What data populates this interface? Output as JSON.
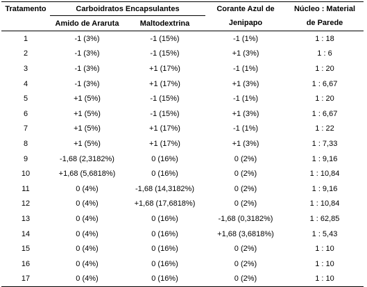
{
  "headers": {
    "tratamento": "Tratamento",
    "carboidratos": "Carboidratos Encapsulantes",
    "amido": "Amido de Araruta",
    "maltodextrina": "Maltodextrina",
    "corante_l1": "Corante Azul de",
    "corante_l2": "Jenipapo",
    "nucleo_l1": "Núcleo : Material",
    "nucleo_l2": "de Parede"
  },
  "rows": [
    [
      "1",
      "-1 (3%)",
      "-1 (15%)",
      "-1 (1%)",
      "1 : 18"
    ],
    [
      "2",
      "-1 (3%)",
      "-1 (15%)",
      "+1 (3%)",
      "1 : 6"
    ],
    [
      "3",
      "-1 (3%)",
      "+1 (17%)",
      "-1 (1%)",
      "1 : 20"
    ],
    [
      "4",
      "-1 (3%)",
      "+1 (17%)",
      "+1 (3%)",
      "1 : 6,67"
    ],
    [
      "5",
      "+1 (5%)",
      "-1 (15%)",
      "-1 (1%)",
      "1 : 20"
    ],
    [
      "6",
      "+1 (5%)",
      "-1 (15%)",
      "+1 (3%)",
      "1 : 6,67"
    ],
    [
      "7",
      "+1 (5%)",
      "+1 (17%)",
      "-1 (1%)",
      "1 : 22"
    ],
    [
      "8",
      "+1 (5%)",
      "+1 (17%)",
      "+1 (3%)",
      "1 : 7,33"
    ],
    [
      "9",
      "-1,68 (2,3182%)",
      "0 (16%)",
      "0 (2%)",
      "1 : 9,16"
    ],
    [
      "10",
      "+1,68 (5,6818%)",
      "0 (16%)",
      "0 (2%)",
      "1 : 10,84"
    ],
    [
      "11",
      "0 (4%)",
      "-1,68 (14,3182%)",
      "0 (2%)",
      "1 : 9,16"
    ],
    [
      "12",
      "0 (4%)",
      "+1,68 (17,6818%)",
      "0 (2%)",
      "1 : 10,84"
    ],
    [
      "13",
      "0 (4%)",
      "0 (16%)",
      "-1,68 (0,3182%)",
      "1 : 62,85"
    ],
    [
      "14",
      "0 (4%)",
      "0 (16%)",
      "+1,68 (3,6818%)",
      "1 : 5,43"
    ],
    [
      "15",
      "0 (4%)",
      "0 (16%)",
      "0 (2%)",
      "1 : 10"
    ],
    [
      "16",
      "0 (4%)",
      "0 (16%)",
      "0 (2%)",
      "1 : 10"
    ],
    [
      "17",
      "0 (4%)",
      "0 (16%)",
      "0 (2%)",
      "1 : 10"
    ]
  ]
}
